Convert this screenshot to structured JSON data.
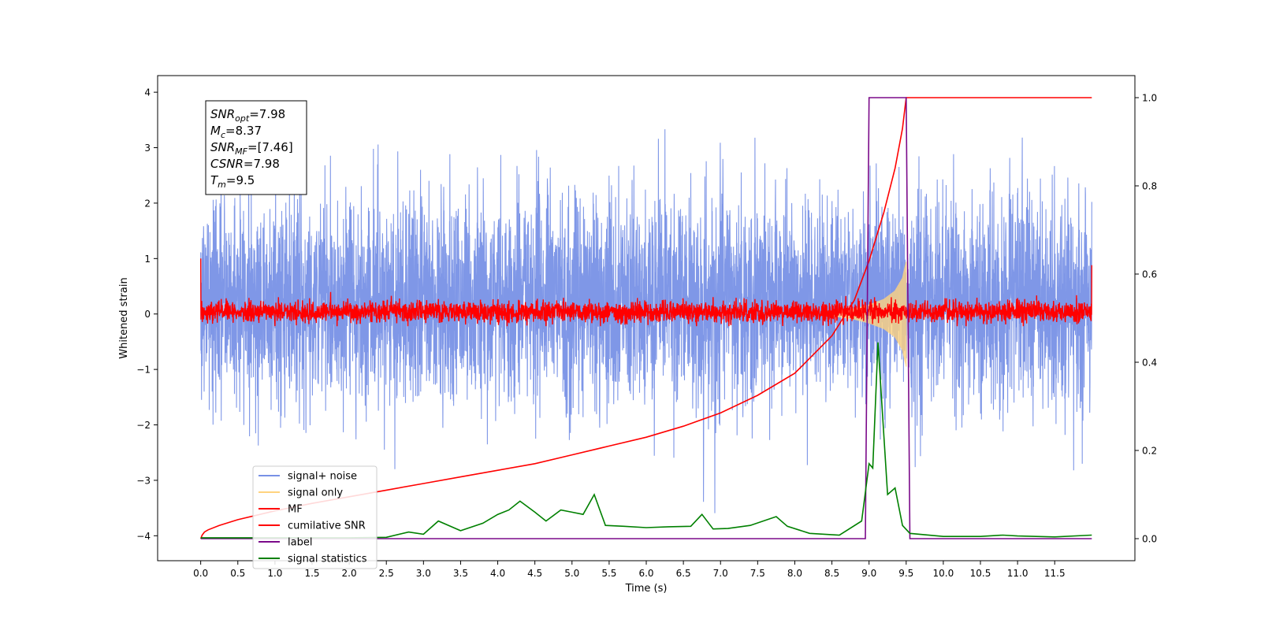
{
  "chart_data": {
    "type": "line",
    "xlabel": "Time (s)",
    "ylabel": "Whitened strain",
    "xlim": [
      -0.58,
      12.58
    ],
    "ylim": [
      -4.45,
      4.3
    ],
    "y2lim": [
      -0.05,
      1.05
    ],
    "x_ticks": [
      0.0,
      0.5,
      1.0,
      1.5,
      2.0,
      2.5,
      3.0,
      3.5,
      4.0,
      4.5,
      5.0,
      5.5,
      6.0,
      6.5,
      7.0,
      7.5,
      8.0,
      8.5,
      9.0,
      9.5,
      10.0,
      10.5,
      11.0,
      11.5
    ],
    "x_tick_labels": [
      "0.0",
      "0.5",
      "1.0",
      "1.5",
      "2.0",
      "2.5",
      "3.0",
      "3.5",
      "4.0",
      "4.5",
      "5.0",
      "5.5",
      "6.0",
      "6.5",
      "7.0",
      "7.5",
      "8.0",
      "8.5",
      "9.0",
      "9.5",
      "10.0",
      "10.5",
      "11.0",
      "11.5"
    ],
    "y_ticks": [
      -4,
      -3,
      -2,
      -1,
      0,
      1,
      2,
      3,
      4
    ],
    "y_tick_labels": [
      "−4",
      "−3",
      "−2",
      "−1",
      "0",
      "1",
      "2",
      "3",
      "4"
    ],
    "y2_ticks": [
      0.0,
      0.2,
      0.4,
      0.6,
      0.8,
      1.0
    ],
    "y2_tick_labels": [
      "0.0",
      "0.2",
      "0.4",
      "0.6",
      "0.8",
      "1.0"
    ],
    "grid": false,
    "legend_position": "lower-left",
    "annotation": [
      {
        "main": "SNR",
        "sub": "opt",
        "rest": "=7.98"
      },
      {
        "main": "M",
        "sub": "c",
        "rest": "=8.37"
      },
      {
        "main": "SNR",
        "sub": "MF",
        "rest": "=[7.46]"
      },
      {
        "main": "CSNR",
        "sub": "",
        "rest": "=7.98"
      },
      {
        "main": "T",
        "sub": "m",
        "rest": "=9.5"
      }
    ],
    "series": [
      {
        "name": "signal+ noise",
        "axis": "left",
        "color": "#7891e6",
        "x_range": [
          0.0,
          12.0
        ],
        "envelope": {
          "approx_upper": 2.0,
          "approx_lower": -1.9,
          "max": 3.9,
          "min": -4.1
        }
      },
      {
        "name": "signal only",
        "axis": "left",
        "color": "#ffd37f",
        "x_range": [
          8.5,
          9.5
        ],
        "envelope_x": [
          8.5,
          8.8,
          9.0,
          9.2,
          9.35,
          9.45,
          9.5
        ],
        "envelope_amp": [
          0.04,
          0.1,
          0.17,
          0.27,
          0.42,
          0.65,
          0.95
        ]
      },
      {
        "name": "MF",
        "axis": "left",
        "color": "#ff0000",
        "x_range": [
          0.0,
          12.0
        ],
        "envelope": {
          "approx_upper": 0.25,
          "approx_lower": -0.17,
          "start_value": 1.0,
          "end_value": 0.88
        }
      },
      {
        "name": "cumilative SNR",
        "axis": "right",
        "color": "#ff0000",
        "x": [
          0.0,
          0.02,
          0.05,
          0.1,
          0.25,
          0.5,
          1.0,
          1.5,
          2.0,
          2.5,
          3.0,
          3.5,
          4.0,
          4.5,
          5.0,
          5.5,
          6.0,
          6.5,
          7.0,
          7.5,
          8.0,
          8.5,
          8.8,
          9.0,
          9.2,
          9.35,
          9.45,
          9.5,
          9.5,
          12.0
        ],
        "y": [
          0.0,
          0.008,
          0.015,
          0.02,
          0.03,
          0.043,
          0.063,
          0.08,
          0.095,
          0.11,
          0.125,
          0.14,
          0.155,
          0.17,
          0.19,
          0.21,
          0.23,
          0.255,
          0.285,
          0.325,
          0.375,
          0.46,
          0.54,
          0.63,
          0.74,
          0.84,
          0.93,
          1.0,
          1.0,
          1.0
        ]
      },
      {
        "name": "label",
        "axis": "right",
        "color": "#7b0a8a",
        "x": [
          0.0,
          8.95,
          9.0,
          9.5,
          9.55,
          12.0
        ],
        "y": [
          0.0,
          0.0,
          1.0,
          1.0,
          0.0,
          0.0
        ]
      },
      {
        "name": "signal statistics",
        "axis": "right",
        "color": "#008000",
        "x": [
          0.0,
          0.5,
          1.0,
          1.5,
          2.0,
          2.5,
          2.8,
          3.0,
          3.2,
          3.5,
          3.8,
          4.0,
          4.15,
          4.3,
          4.5,
          4.65,
          4.85,
          5.0,
          5.15,
          5.3,
          5.45,
          5.7,
          6.0,
          6.3,
          6.6,
          6.75,
          6.9,
          7.1,
          7.4,
          7.75,
          7.9,
          8.2,
          8.6,
          8.9,
          9.0,
          9.05,
          9.12,
          9.25,
          9.35,
          9.45,
          9.55,
          10.0,
          10.5,
          10.8,
          11.0,
          11.5,
          12.0
        ],
        "y": [
          0.002,
          0.002,
          0.002,
          0.002,
          0.002,
          0.003,
          0.015,
          0.01,
          0.04,
          0.018,
          0.035,
          0.055,
          0.065,
          0.085,
          0.06,
          0.04,
          0.065,
          0.06,
          0.055,
          0.1,
          0.03,
          0.028,
          0.025,
          0.027,
          0.028,
          0.055,
          0.022,
          0.023,
          0.03,
          0.05,
          0.028,
          0.012,
          0.008,
          0.04,
          0.17,
          0.16,
          0.445,
          0.1,
          0.115,
          0.03,
          0.012,
          0.005,
          0.005,
          0.008,
          0.006,
          0.004,
          0.008
        ]
      }
    ]
  }
}
